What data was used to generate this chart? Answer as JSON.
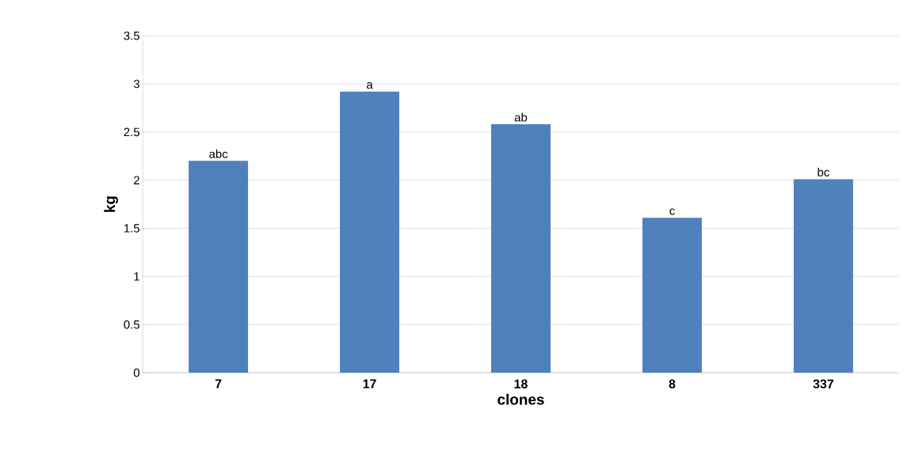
{
  "chart_data": {
    "type": "bar",
    "xlabel": "clones",
    "ylabel": "kg",
    "categories": [
      "7",
      "17",
      "18",
      "8",
      "337"
    ],
    "values": [
      2.2,
      2.92,
      2.58,
      1.61,
      2.01
    ],
    "color": "#4f81bd",
    "ylim": [
      0,
      3.5
    ],
    "yticks": [
      0,
      0.5,
      1,
      1.5,
      2,
      2.5,
      3,
      3.5
    ],
    "grid": "y",
    "annotations": [
      {
        "text": "abc",
        "x": "7",
        "y": 2.2
      },
      {
        "text": "a",
        "x": "17",
        "y": 2.92
      },
      {
        "text": "ab",
        "x": "18",
        "y": 2.58
      },
      {
        "text": "c",
        "x": "8",
        "y": 1.61
      },
      {
        "text": "bc",
        "x": "337",
        "y": 2.01
      }
    ]
  }
}
